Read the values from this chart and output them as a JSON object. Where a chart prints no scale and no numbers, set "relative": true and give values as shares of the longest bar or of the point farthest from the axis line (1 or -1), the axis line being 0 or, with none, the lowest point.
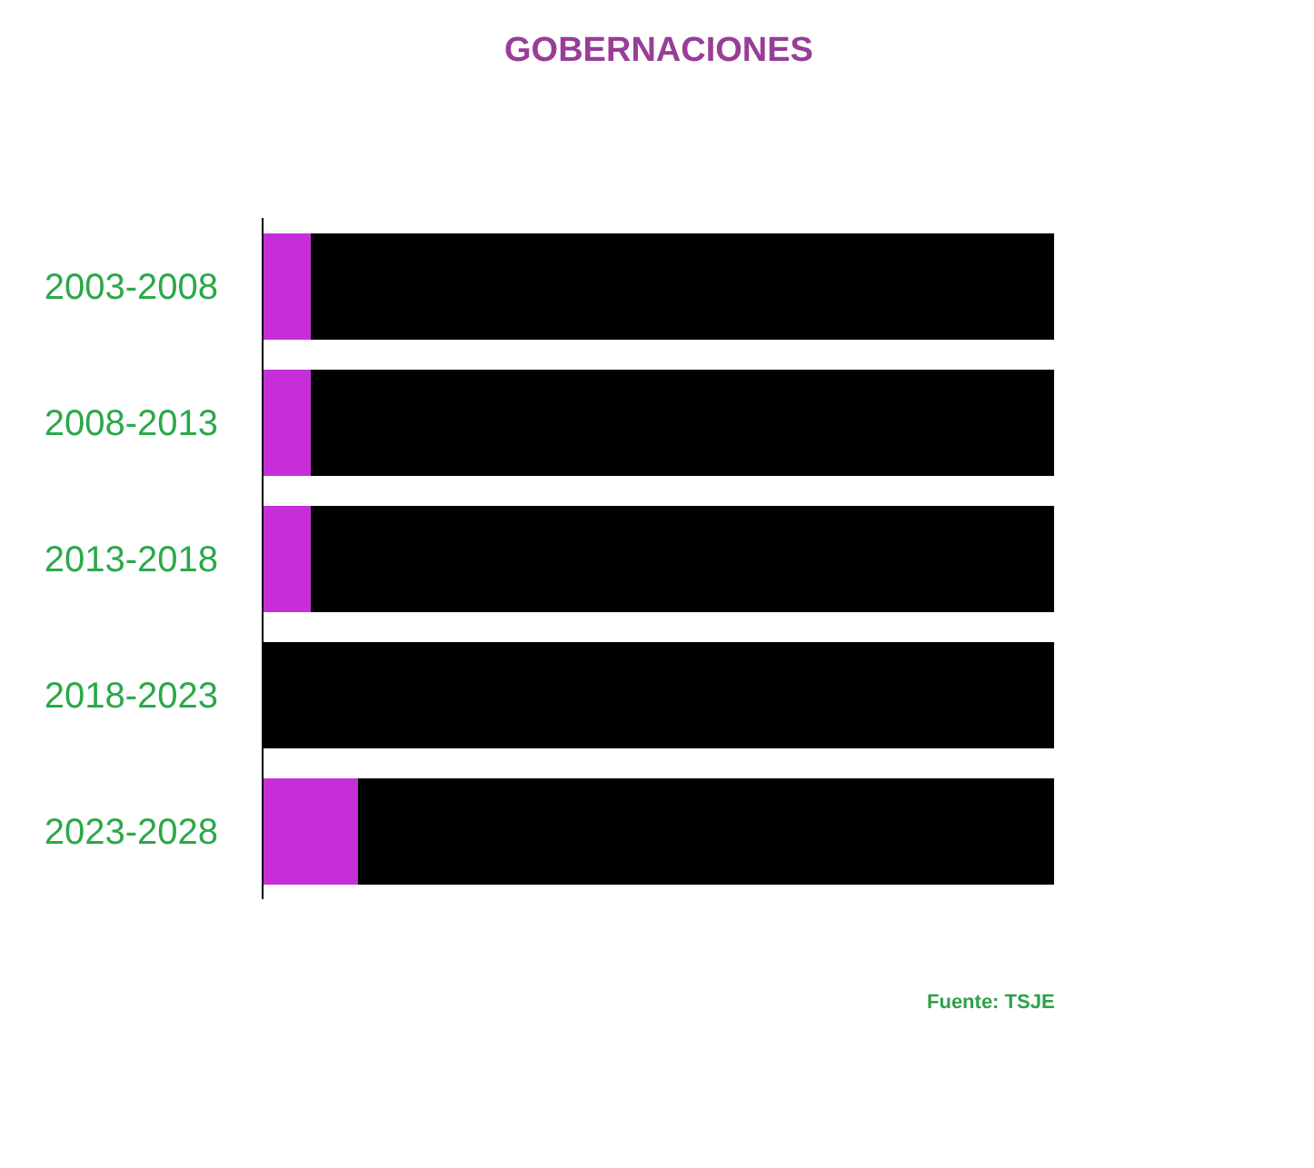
{
  "chart_data": {
    "type": "bar",
    "title": "GOBERNACIONES",
    "orientation": "horizontal",
    "stacked": true,
    "relative": true,
    "categories": [
      "2003-2008",
      "2008-2013",
      "2013-2018",
      "2018-2023",
      "2023-2028"
    ],
    "series": [
      {
        "color": "#c62fd8",
        "values": [
          0.06,
          0.06,
          0.06,
          0,
          0.12
        ]
      },
      {
        "color": "#000000",
        "values": [
          0.94,
          0.94,
          0.94,
          1,
          0.88
        ]
      }
    ],
    "annotations": [
      "Fuente: TSJE"
    ]
  }
}
